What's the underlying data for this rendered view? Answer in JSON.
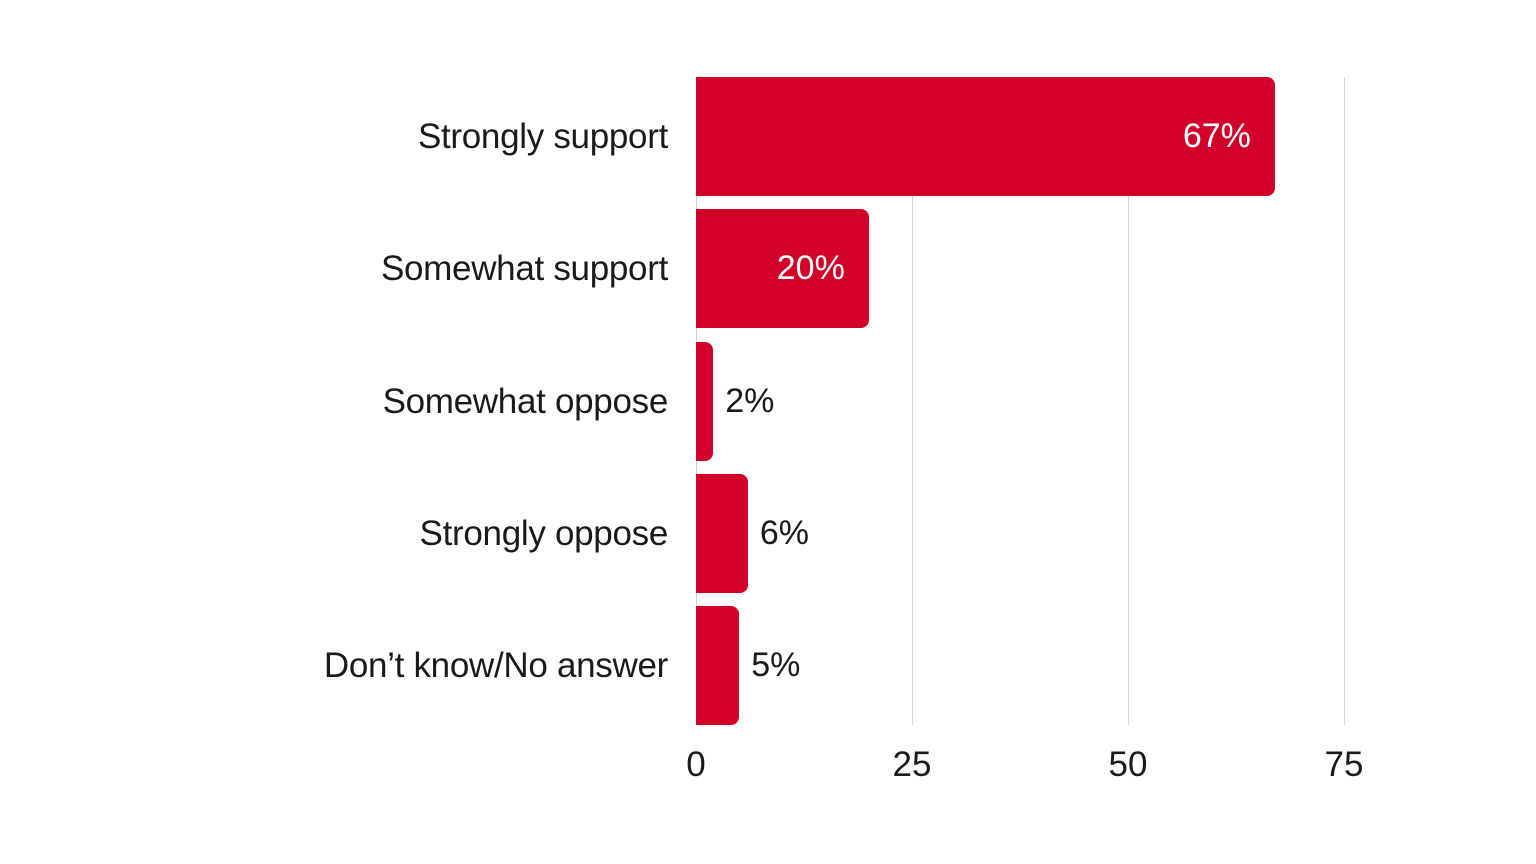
{
  "chart_data": {
    "type": "bar",
    "orientation": "horizontal",
    "title": "",
    "xlabel": "",
    "ylabel": "",
    "categories": [
      "Strongly support",
      "Somewhat support",
      "Somewhat oppose",
      "Strongly oppose",
      "Don’t know/No answer"
    ],
    "values": [
      67,
      20,
      2,
      6,
      5
    ],
    "value_labels": [
      "67%",
      "20%",
      "2%",
      "6%",
      "5%"
    ],
    "xlim": [
      0,
      75
    ],
    "xticks": [
      "0",
      "25",
      "50",
      "75"
    ],
    "grid": true,
    "legend": null,
    "bar_color": "#d10029"
  }
}
